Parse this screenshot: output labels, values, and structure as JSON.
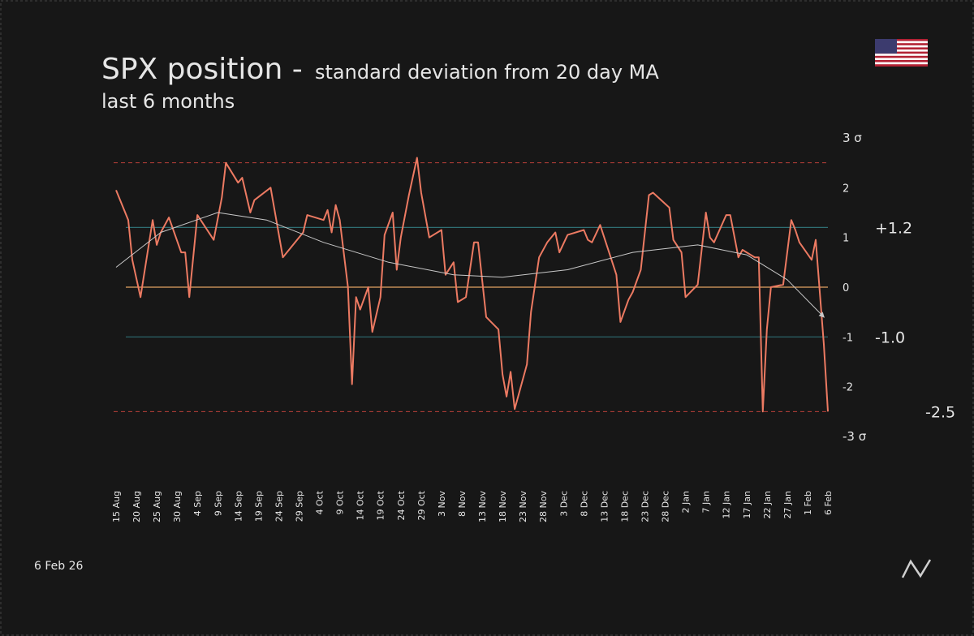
{
  "chart_data": {
    "type": "line",
    "title": "SPX position -",
    "subtitle": "standard deviation from 20 day MA",
    "period": "last 6 months",
    "footer_date": "6 Feb 26",
    "xlim": [
      "15 Aug",
      "6 Feb"
    ],
    "xticks": [
      "15 Aug",
      "20 Aug",
      "25 Aug",
      "30 Aug",
      "4 Sep",
      "9 Sep",
      "14 Sep",
      "19 Sep",
      "24 Sep",
      "29 Sep",
      "4 Oct",
      "9 Oct",
      "14 Oct",
      "19 Oct",
      "24 Oct",
      "29 Oct",
      "3 Nov",
      "8 Nov",
      "13 Nov",
      "18 Nov",
      "23 Nov",
      "28 Nov",
      "3 Dec",
      "8 Dec",
      "13 Dec",
      "18 Dec",
      "23 Dec",
      "28 Dec",
      "2 Jan",
      "7 Jan",
      "12 Jan",
      "17 Jan",
      "22 Jan",
      "27 Jan",
      "1 Feb",
      "6 Feb"
    ],
    "ylim": [
      -3,
      3
    ],
    "yticks": [
      {
        "value": -3,
        "label": "-3 σ"
      },
      -2,
      -1,
      0,
      1,
      2,
      {
        "value": 3,
        "label": "3 σ"
      }
    ],
    "reference_lines": [
      {
        "value": 2.5,
        "color": "#b8403a",
        "dashed": true
      },
      {
        "value": -2.5,
        "color": "#b8403a",
        "dashed": true,
        "label": "-2.5"
      },
      {
        "value": 1.2,
        "color": "#2f6e72",
        "label": "+1.2"
      },
      {
        "value": -1.0,
        "color": "#2f6e72",
        "label": "-1.0"
      },
      {
        "value": 0,
        "color": "#e3a263"
      }
    ],
    "series": [
      {
        "color": "#ec7a62",
        "x": [
          "15 Aug",
          "18 Aug",
          "19 Aug",
          "21 Aug",
          "24 Aug",
          "25 Aug",
          "26 Aug",
          "28 Aug",
          "31 Aug",
          "1 Sep",
          "2 Sep",
          "4 Sep",
          "8 Sep",
          "10 Sep",
          "11 Sep",
          "14 Sep",
          "15 Sep",
          "17 Sep",
          "18 Sep",
          "22 Sep",
          "25 Sep",
          "30 Sep",
          "1 Oct",
          "5 Oct",
          "6 Oct",
          "7 Oct",
          "8 Oct",
          "9 Oct",
          "11 Oct",
          "12 Oct",
          "13 Oct",
          "14 Oct",
          "16 Oct",
          "17 Oct",
          "19 Oct",
          "20 Oct",
          "22 Oct",
          "23 Oct",
          "24 Oct",
          "26 Oct",
          "28 Oct",
          "29 Oct",
          "31 Oct",
          "3 Nov",
          "4 Nov",
          "6 Nov",
          "7 Nov",
          "9 Nov",
          "11 Nov",
          "12 Nov",
          "14 Nov",
          "17 Nov",
          "18 Nov",
          "19 Nov",
          "20 Nov",
          "21 Nov",
          "24 Nov",
          "25 Nov",
          "27 Nov",
          "29 Nov",
          "1 Dec",
          "2 Dec",
          "4 Dec",
          "8 Dec",
          "9 Dec",
          "10 Dec",
          "12 Dec",
          "15 Dec",
          "16 Dec",
          "17 Dec",
          "19 Dec",
          "20 Dec",
          "22 Dec",
          "24 Dec",
          "25 Dec",
          "29 Dec",
          "30 Dec",
          "1 Jan",
          "2 Jan",
          "5 Jan",
          "7 Jan",
          "8 Jan",
          "9 Jan",
          "12 Jan",
          "13 Jan",
          "15 Jan",
          "16 Jan",
          "19 Jan",
          "20 Jan",
          "21 Jan",
          "22 Jan",
          "23 Jan",
          "26 Jan",
          "28 Jan",
          "29 Jan",
          "30 Jan",
          "2 Feb",
          "3 Feb",
          "5 Feb",
          "6 Feb"
        ],
        "values": [
          1.95,
          1.35,
          0.55,
          -0.2,
          1.35,
          0.85,
          1.1,
          1.4,
          0.7,
          0.7,
          -0.2,
          1.45,
          0.95,
          1.8,
          2.5,
          2.1,
          2.2,
          1.5,
          1.75,
          2.0,
          0.6,
          1.1,
          1.45,
          1.35,
          1.55,
          1.1,
          1.65,
          1.35,
          0,
          -1.95,
          -0.2,
          -0.45,
          0,
          -0.9,
          -0.2,
          1.05,
          1.5,
          0.35,
          1.0,
          1.85,
          2.6,
          1.9,
          1.0,
          1.15,
          0.25,
          0.5,
          -0.3,
          -0.2,
          0.9,
          0.9,
          -0.6,
          -0.85,
          -1.75,
          -2.2,
          -1.7,
          -2.45,
          -1.55,
          -0.5,
          0.6,
          0.9,
          1.1,
          0.7,
          1.05,
          1.15,
          0.95,
          0.9,
          1.25,
          0.5,
          0.25,
          -0.7,
          -0.25,
          -0.1,
          0.35,
          1.85,
          1.9,
          1.6,
          0.95,
          0.7,
          -0.2,
          0.05,
          1.5,
          1.0,
          0.9,
          1.45,
          1.45,
          0.6,
          0.75,
          0.6,
          0.6,
          -2.5,
          -0.85,
          0,
          0.05,
          1.35,
          1.15,
          0.9,
          0.55,
          0.95,
          -1.15,
          -2.5
        ]
      }
    ],
    "trend": {
      "color": "#c8c8c8",
      "x": [
        "15 Aug",
        "26 Aug",
        "9 Sep",
        "21 Sep",
        "5 Oct",
        "21 Oct",
        "6 Nov",
        "18 Nov",
        "4 Dec",
        "20 Dec",
        "5 Jan",
        "17 Jan",
        "27 Jan",
        "5 Feb"
      ],
      "values": [
        0.4,
        1.1,
        1.5,
        1.35,
        0.9,
        0.5,
        0.25,
        0.2,
        0.35,
        0.7,
        0.85,
        0.65,
        0.15,
        -0.6
      ]
    }
  }
}
